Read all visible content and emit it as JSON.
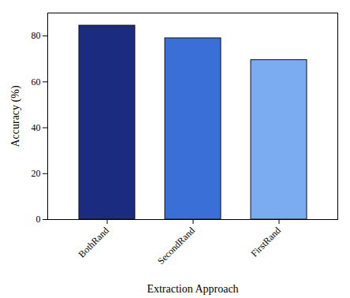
{
  "chart_data": {
    "type": "bar",
    "categories": [
      "BothRand",
      "SecondRand",
      "FirstRand"
    ],
    "values": [
      84.5,
      79.0,
      69.5
    ],
    "colors": [
      "#1a2b80",
      "#3a6fd8",
      "#7babf0"
    ],
    "xlabel": "Extraction Approach",
    "ylabel": "Accuracy (%)",
    "ylim": [
      0,
      90
    ],
    "yticks": [
      0,
      20,
      40,
      60,
      80
    ],
    "grid": false
  }
}
